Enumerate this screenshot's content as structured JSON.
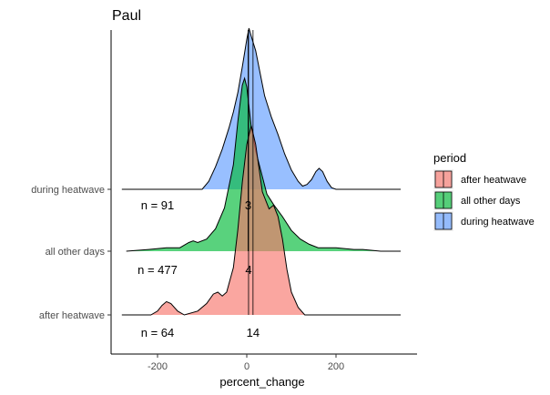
{
  "chart_data": {
    "type": "area",
    "subtype": "ridgeline-density",
    "title": "Paul",
    "xlabel": "percent_change",
    "ylabel": "",
    "xlim": [
      -310,
      355
    ],
    "x_ticks": [
      -200,
      0,
      200
    ],
    "x_tick_labels": [
      "-200",
      "0",
      "200"
    ],
    "grid": false,
    "legend": {
      "title": "period",
      "position": "right",
      "entries": [
        {
          "label": "after heatwave",
          "color": "#F8766D"
        },
        {
          "label": "all other days",
          "color": "#00BA38"
        },
        {
          "label": "during heatwave",
          "color": "#619CFF"
        }
      ]
    },
    "categories": [
      "during heatwave",
      "all other days",
      "after heatwave"
    ],
    "series": [
      {
        "name": "during heatwave",
        "color": "#619CFF",
        "median": 3,
        "n_label": "n = 91",
        "median_label": "3",
        "x": [
          -280,
          -100,
          -85,
          -70,
          -55,
          -40,
          -30,
          -20,
          -10,
          0,
          5,
          10,
          20,
          30,
          40,
          55,
          70,
          85,
          100,
          115,
          125,
          135,
          145,
          155,
          162,
          170,
          180,
          190,
          200,
          345
        ],
        "density": [
          0,
          0,
          0.05,
          0.14,
          0.25,
          0.38,
          0.48,
          0.6,
          0.76,
          0.93,
          1.0,
          0.95,
          0.86,
          0.72,
          0.58,
          0.45,
          0.34,
          0.22,
          0.12,
          0.05,
          0.02,
          0.03,
          0.06,
          0.11,
          0.13,
          0.11,
          0.05,
          0.01,
          0,
          0
        ]
      },
      {
        "name": "all other days",
        "color": "#00BA38",
        "median": 4,
        "n_label": "n = 477",
        "median_label": "4",
        "x": [
          -270,
          -220,
          -180,
          -150,
          -130,
          -120,
          -110,
          -90,
          -70,
          -50,
          -30,
          -20,
          -10,
          -5,
          0,
          10,
          20,
          30,
          45,
          60,
          80,
          100,
          120,
          140,
          160,
          200,
          240,
          260,
          300,
          345
        ],
        "density": [
          0,
          0.01,
          0.02,
          0.02,
          0.05,
          0.06,
          0.05,
          0.07,
          0.13,
          0.25,
          0.5,
          0.75,
          0.96,
          1.0,
          0.95,
          0.72,
          0.58,
          0.48,
          0.33,
          0.27,
          0.2,
          0.12,
          0.07,
          0.04,
          0.02,
          0.02,
          0.01,
          0.01,
          0,
          0
        ]
      },
      {
        "name": "after heatwave",
        "color": "#F8766D",
        "median": 14,
        "n_label": "n = 64",
        "median_label": "14",
        "x": [
          -280,
          -215,
          -200,
          -190,
          -180,
          -170,
          -155,
          -140,
          -110,
          -90,
          -75,
          -65,
          -55,
          -45,
          -30,
          -20,
          -10,
          0,
          10,
          20,
          35,
          50,
          60,
          70,
          80,
          90,
          100,
          115,
          130,
          345
        ],
        "density": [
          0,
          0,
          0.02,
          0.05,
          0.07,
          0.06,
          0.02,
          0,
          0.02,
          0.06,
          0.11,
          0.12,
          0.1,
          0.12,
          0.25,
          0.45,
          0.7,
          0.9,
          1.0,
          0.9,
          0.65,
          0.56,
          0.58,
          0.52,
          0.4,
          0.24,
          0.12,
          0.04,
          0,
          0
        ]
      }
    ]
  }
}
